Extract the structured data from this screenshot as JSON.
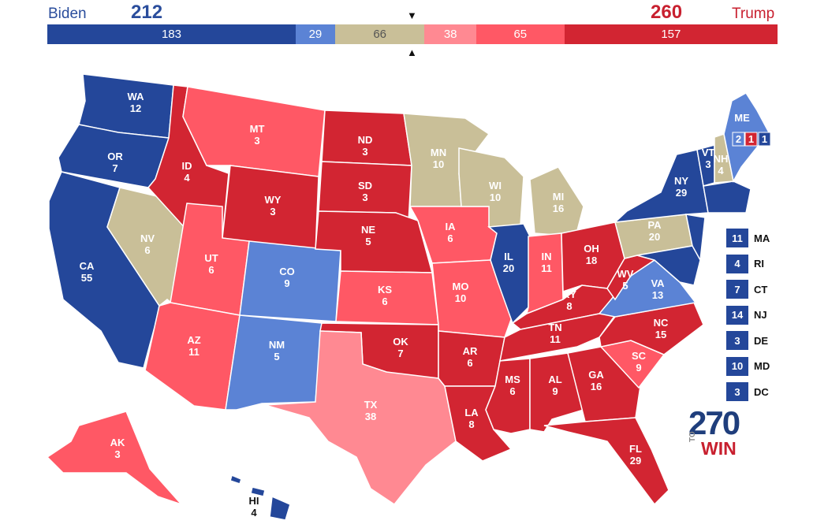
{
  "header": {
    "biden_name": "Biden",
    "biden_total": "212",
    "trump_name": "Trump",
    "trump_total": "260"
  },
  "bar_segments": [
    {
      "value": "183",
      "units": 183,
      "color": "#24479a"
    },
    {
      "value": "29",
      "units": 29,
      "color": "#5b83d5"
    },
    {
      "value": "66",
      "units": 66,
      "color": "#c9bf98"
    },
    {
      "value": "38",
      "units": 38,
      "color": "#ff8992"
    },
    {
      "value": "65",
      "units": 65,
      "color": "#ff5865"
    },
    {
      "value": "157",
      "units": 157,
      "color": "#d22532"
    }
  ],
  "colors": {
    "safe_d": "#24479a",
    "lean_d": "#5b83d5",
    "tossup": "#c9bf98",
    "tilt_r": "#ff8992",
    "lean_r": "#ff5865",
    "safe_r": "#d22532"
  },
  "states": [
    {
      "abbr": "WA",
      "ev": "12",
      "rating": "safe_d"
    },
    {
      "abbr": "OR",
      "ev": "7",
      "rating": "safe_d"
    },
    {
      "abbr": "CA",
      "ev": "55",
      "rating": "safe_d"
    },
    {
      "abbr": "NV",
      "ev": "6",
      "rating": "tossup"
    },
    {
      "abbr": "ID",
      "ev": "4",
      "rating": "safe_r"
    },
    {
      "abbr": "MT",
      "ev": "3",
      "rating": "lean_r"
    },
    {
      "abbr": "WY",
      "ev": "3",
      "rating": "safe_r"
    },
    {
      "abbr": "UT",
      "ev": "6",
      "rating": "lean_r"
    },
    {
      "abbr": "AZ",
      "ev": "11",
      "rating": "lean_r"
    },
    {
      "abbr": "CO",
      "ev": "9",
      "rating": "lean_d"
    },
    {
      "abbr": "NM",
      "ev": "5",
      "rating": "lean_d"
    },
    {
      "abbr": "ND",
      "ev": "3",
      "rating": "safe_r"
    },
    {
      "abbr": "SD",
      "ev": "3",
      "rating": "safe_r"
    },
    {
      "abbr": "NE",
      "ev": "5",
      "rating": "safe_r"
    },
    {
      "abbr": "KS",
      "ev": "6",
      "rating": "lean_r"
    },
    {
      "abbr": "OK",
      "ev": "7",
      "rating": "safe_r"
    },
    {
      "abbr": "TX",
      "ev": "38",
      "rating": "tilt_r"
    },
    {
      "abbr": "MN",
      "ev": "10",
      "rating": "tossup"
    },
    {
      "abbr": "IA",
      "ev": "6",
      "rating": "lean_r"
    },
    {
      "abbr": "MO",
      "ev": "10",
      "rating": "lean_r"
    },
    {
      "abbr": "AR",
      "ev": "6",
      "rating": "safe_r"
    },
    {
      "abbr": "LA",
      "ev": "8",
      "rating": "safe_r"
    },
    {
      "abbr": "WI",
      "ev": "10",
      "rating": "tossup"
    },
    {
      "abbr": "IL",
      "ev": "20",
      "rating": "safe_d"
    },
    {
      "abbr": "MI",
      "ev": "16",
      "rating": "tossup"
    },
    {
      "abbr": "IN",
      "ev": "11",
      "rating": "lean_r"
    },
    {
      "abbr": "OH",
      "ev": "18",
      "rating": "safe_r"
    },
    {
      "abbr": "KY",
      "ev": "8",
      "rating": "safe_r"
    },
    {
      "abbr": "TN",
      "ev": "11",
      "rating": "safe_r"
    },
    {
      "abbr": "MS",
      "ev": "6",
      "rating": "safe_r"
    },
    {
      "abbr": "AL",
      "ev": "9",
      "rating": "safe_r"
    },
    {
      "abbr": "GA",
      "ev": "16",
      "rating": "safe_r"
    },
    {
      "abbr": "FL",
      "ev": "29",
      "rating": "safe_r"
    },
    {
      "abbr": "SC",
      "ev": "9",
      "rating": "lean_r"
    },
    {
      "abbr": "NC",
      "ev": "15",
      "rating": "safe_r"
    },
    {
      "abbr": "VA",
      "ev": "13",
      "rating": "lean_d"
    },
    {
      "abbr": "WV",
      "ev": "5",
      "rating": "safe_r"
    },
    {
      "abbr": "PA",
      "ev": "20",
      "rating": "tossup"
    },
    {
      "abbr": "NY",
      "ev": "29",
      "rating": "safe_d"
    },
    {
      "abbr": "VT",
      "ev": "3",
      "rating": "safe_d"
    },
    {
      "abbr": "NH",
      "ev": "4",
      "rating": "tossup"
    },
    {
      "abbr": "ME",
      "ev": "",
      "rating": "lean_d"
    },
    {
      "abbr": "AK",
      "ev": "3",
      "rating": "lean_r"
    },
    {
      "abbr": "HI",
      "ev": "4",
      "rating": "safe_d"
    }
  ],
  "maine_districts": [
    "2",
    "1",
    "1"
  ],
  "small_states": [
    {
      "abbr": "MA",
      "ev": "11"
    },
    {
      "abbr": "RI",
      "ev": "4"
    },
    {
      "abbr": "CT",
      "ev": "7"
    },
    {
      "abbr": "NJ",
      "ev": "14"
    },
    {
      "abbr": "DE",
      "ev": "3"
    },
    {
      "abbr": "MD",
      "ev": "10"
    },
    {
      "abbr": "DC",
      "ev": "3"
    }
  ],
  "logo": {
    "number": "270",
    "to": "TO",
    "win": "WIN"
  }
}
